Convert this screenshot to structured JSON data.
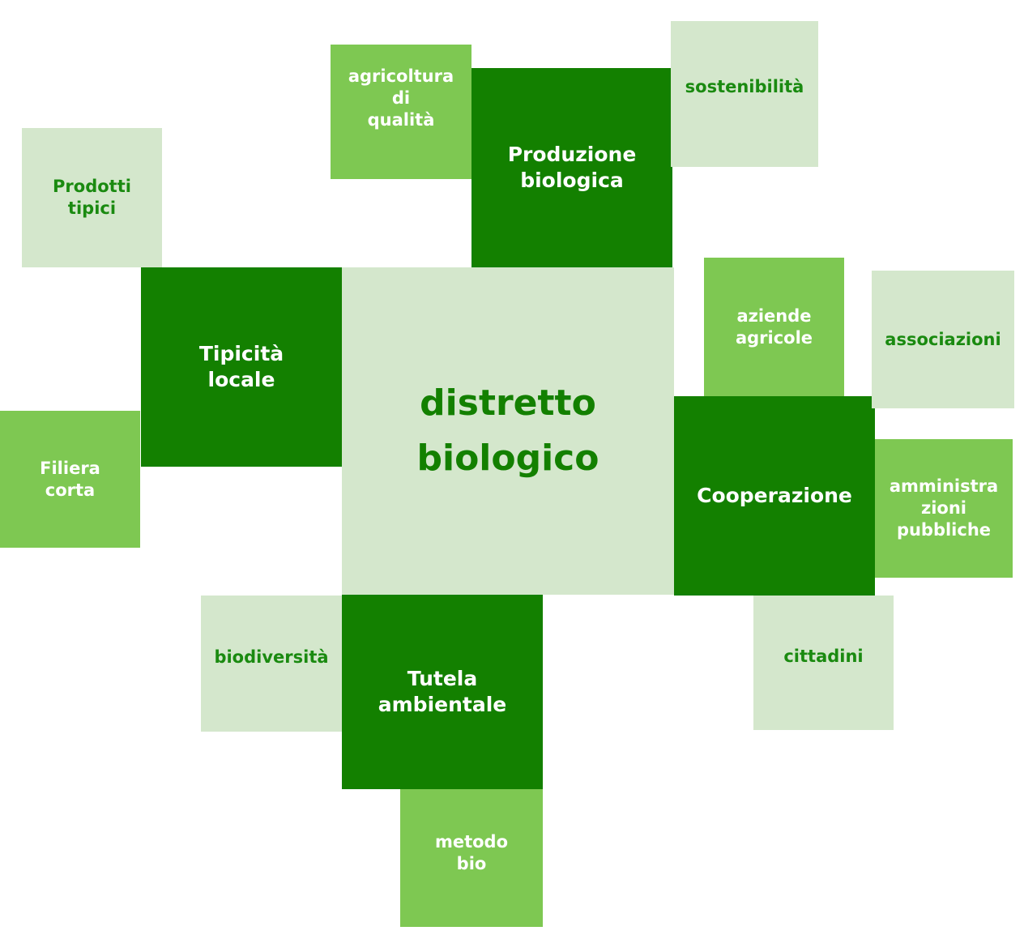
{
  "center": {
    "line1": "distretto",
    "line2": "biologico"
  },
  "pillars": {
    "produzione": {
      "line1": "Produzione",
      "line2": "biologica"
    },
    "tipicita": {
      "line1": "Tipicità",
      "line2": "locale"
    },
    "cooperazione": {
      "line1": "Cooperazione"
    },
    "tutela": {
      "line1": "Tutela",
      "line2": "ambientale"
    }
  },
  "satellites": {
    "agricoltura": {
      "line1": "agricoltura",
      "line2": "di",
      "line3": "qualità"
    },
    "sostenibilita": {
      "line1": "sostenibilità"
    },
    "prodotti": {
      "line1": "Prodotti",
      "line2": "tipici"
    },
    "filiera": {
      "line1": "Filiera",
      "line2": "corta"
    },
    "aziende": {
      "line1": "aziende",
      "line2": "agricole"
    },
    "associazioni": {
      "line1": "associazioni"
    },
    "amministrazioni": {
      "line1": "amministra",
      "line2": "zioni",
      "line3": "pubbliche"
    },
    "cittadini": {
      "line1": "cittadini"
    },
    "biodiversita": {
      "line1": "biodiversità"
    },
    "metodo": {
      "line1": "metodo",
      "line2": "bio"
    }
  },
  "colors": {
    "pale": "#d4e7cc",
    "mid": "#7ec852",
    "dark": "#138000",
    "pale_text": "#1a8a10"
  }
}
